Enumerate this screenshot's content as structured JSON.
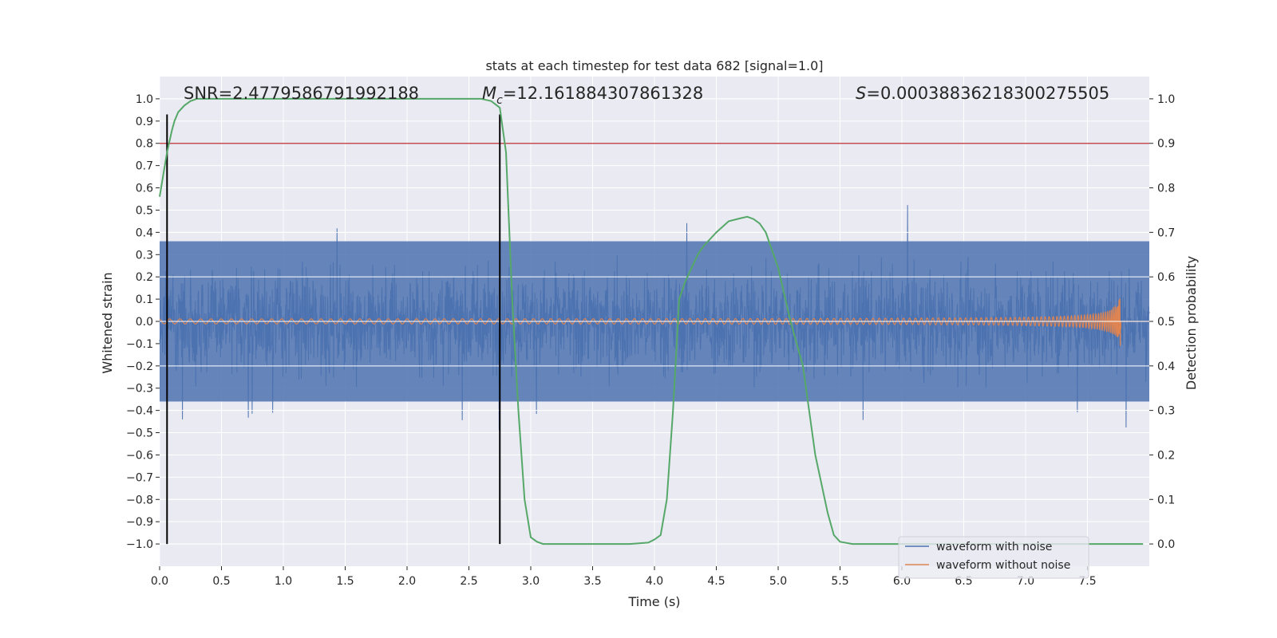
{
  "chart_data": {
    "type": "line",
    "title": "stats at each timestep for test data 682 [signal=1.0]",
    "xlabel": "Time (s)",
    "ylabel": "Whitened strain",
    "y2label": "Detection probability",
    "xlim": [
      0.0,
      8.0
    ],
    "ylim": [
      -1.1,
      1.1
    ],
    "y2lim": [
      -0.05,
      1.05
    ],
    "xticks": [
      0.0,
      0.5,
      1.0,
      1.5,
      2.0,
      2.5,
      3.0,
      3.5,
      4.0,
      4.5,
      5.0,
      5.5,
      6.0,
      6.5,
      7.0,
      7.5
    ],
    "xtick_labels": [
      "0.0",
      "0.5",
      "1.0",
      "1.5",
      "2.0",
      "2.5",
      "3.0",
      "3.5",
      "4.0",
      "4.5",
      "5.0",
      "5.5",
      "6.0",
      "6.5",
      "7.0",
      "7.5"
    ],
    "yticks": [
      1.0,
      0.9,
      0.8,
      0.7,
      0.6,
      0.5,
      0.4,
      0.3,
      0.2,
      0.1,
      0.0,
      -0.1,
      -0.2,
      -0.3,
      -0.4,
      -0.5,
      -0.6,
      -0.7,
      -0.8,
      -0.9,
      -1.0
    ],
    "ytick_labels": [
      "1.0",
      "0.9",
      "0.8",
      "0.7",
      "0.6",
      "0.5",
      "0.4",
      "0.3",
      "0.2",
      "0.1",
      "0.0",
      "−0.1",
      "−0.2",
      "−0.3",
      "−0.4",
      "−0.5",
      "−0.6",
      "−0.7",
      "−0.8",
      "−0.9",
      "−1.0"
    ],
    "y2ticks": [
      1.0,
      0.9,
      0.8,
      0.7,
      0.6,
      0.5,
      0.4,
      0.3,
      0.2,
      0.1,
      0.0
    ],
    "y2tick_labels": [
      "1.0",
      "0.9",
      "0.8",
      "0.7",
      "0.6",
      "0.5",
      "0.4",
      "0.3",
      "0.2",
      "0.1",
      "0.0"
    ],
    "threshold": 0.9,
    "vlines": [
      0.06,
      2.75
    ],
    "vline_range": [
      -1.0,
      0.93
    ],
    "annotations": {
      "snr": "SNR=2.4779586791992188",
      "mc_prefix": "M",
      "mc_sub": "c",
      "mc_value": "=12.161884307861328",
      "s_prefix": "S",
      "s_value": "=0.00038836218300275505"
    },
    "series": [
      {
        "name": "waveform with noise",
        "color": "#4c72b0",
        "envelope": 0.36,
        "peak_max": 0.93,
        "peak_min": -1.0
      },
      {
        "name": "waveform without noise",
        "color": "#dd8452",
        "start_amp": 0.01,
        "end_amp": 0.12,
        "end_time": 7.77
      },
      {
        "name": "detection probability",
        "color": "#55a868",
        "axis": "right",
        "x": [
          0.0,
          0.06,
          0.1,
          0.12,
          0.15,
          0.2,
          0.25,
          0.3,
          0.35,
          0.4,
          0.5,
          1.0,
          1.5,
          2.0,
          2.5,
          2.6,
          2.68,
          2.75,
          2.8,
          2.85,
          2.9,
          2.95,
          3.0,
          3.05,
          3.1,
          3.2,
          3.5,
          3.8,
          3.95,
          4.0,
          4.05,
          4.1,
          4.15,
          4.2,
          4.25,
          4.3,
          4.35,
          4.4,
          4.5,
          4.6,
          4.7,
          4.75,
          4.8,
          4.85,
          4.9,
          5.0,
          5.1,
          5.2,
          5.3,
          5.4,
          5.45,
          5.5,
          5.6,
          6.0,
          7.0,
          7.95
        ],
        "y": [
          0.78,
          0.88,
          0.93,
          0.95,
          0.97,
          0.985,
          0.995,
          1.0,
          1.0,
          1.0,
          1.0,
          1.0,
          1.0,
          1.0,
          1.0,
          1.0,
          0.995,
          0.98,
          0.88,
          0.55,
          0.3,
          0.1,
          0.015,
          0.005,
          0.0,
          0.0,
          0.0,
          0.0,
          0.003,
          0.01,
          0.02,
          0.1,
          0.3,
          0.55,
          0.59,
          0.62,
          0.65,
          0.67,
          0.7,
          0.725,
          0.732,
          0.735,
          0.73,
          0.72,
          0.7,
          0.62,
          0.5,
          0.4,
          0.2,
          0.07,
          0.02,
          0.005,
          0.0,
          0.0,
          0.0,
          0.0
        ]
      }
    ],
    "legend": [
      "waveform with noise",
      "waveform without noise"
    ],
    "legend_position": "lower-right",
    "grid": true,
    "colors": {
      "background": "#eaeaf2",
      "grid": "#ffffff",
      "threshold": "#c44e52",
      "vline": "#000000"
    }
  }
}
